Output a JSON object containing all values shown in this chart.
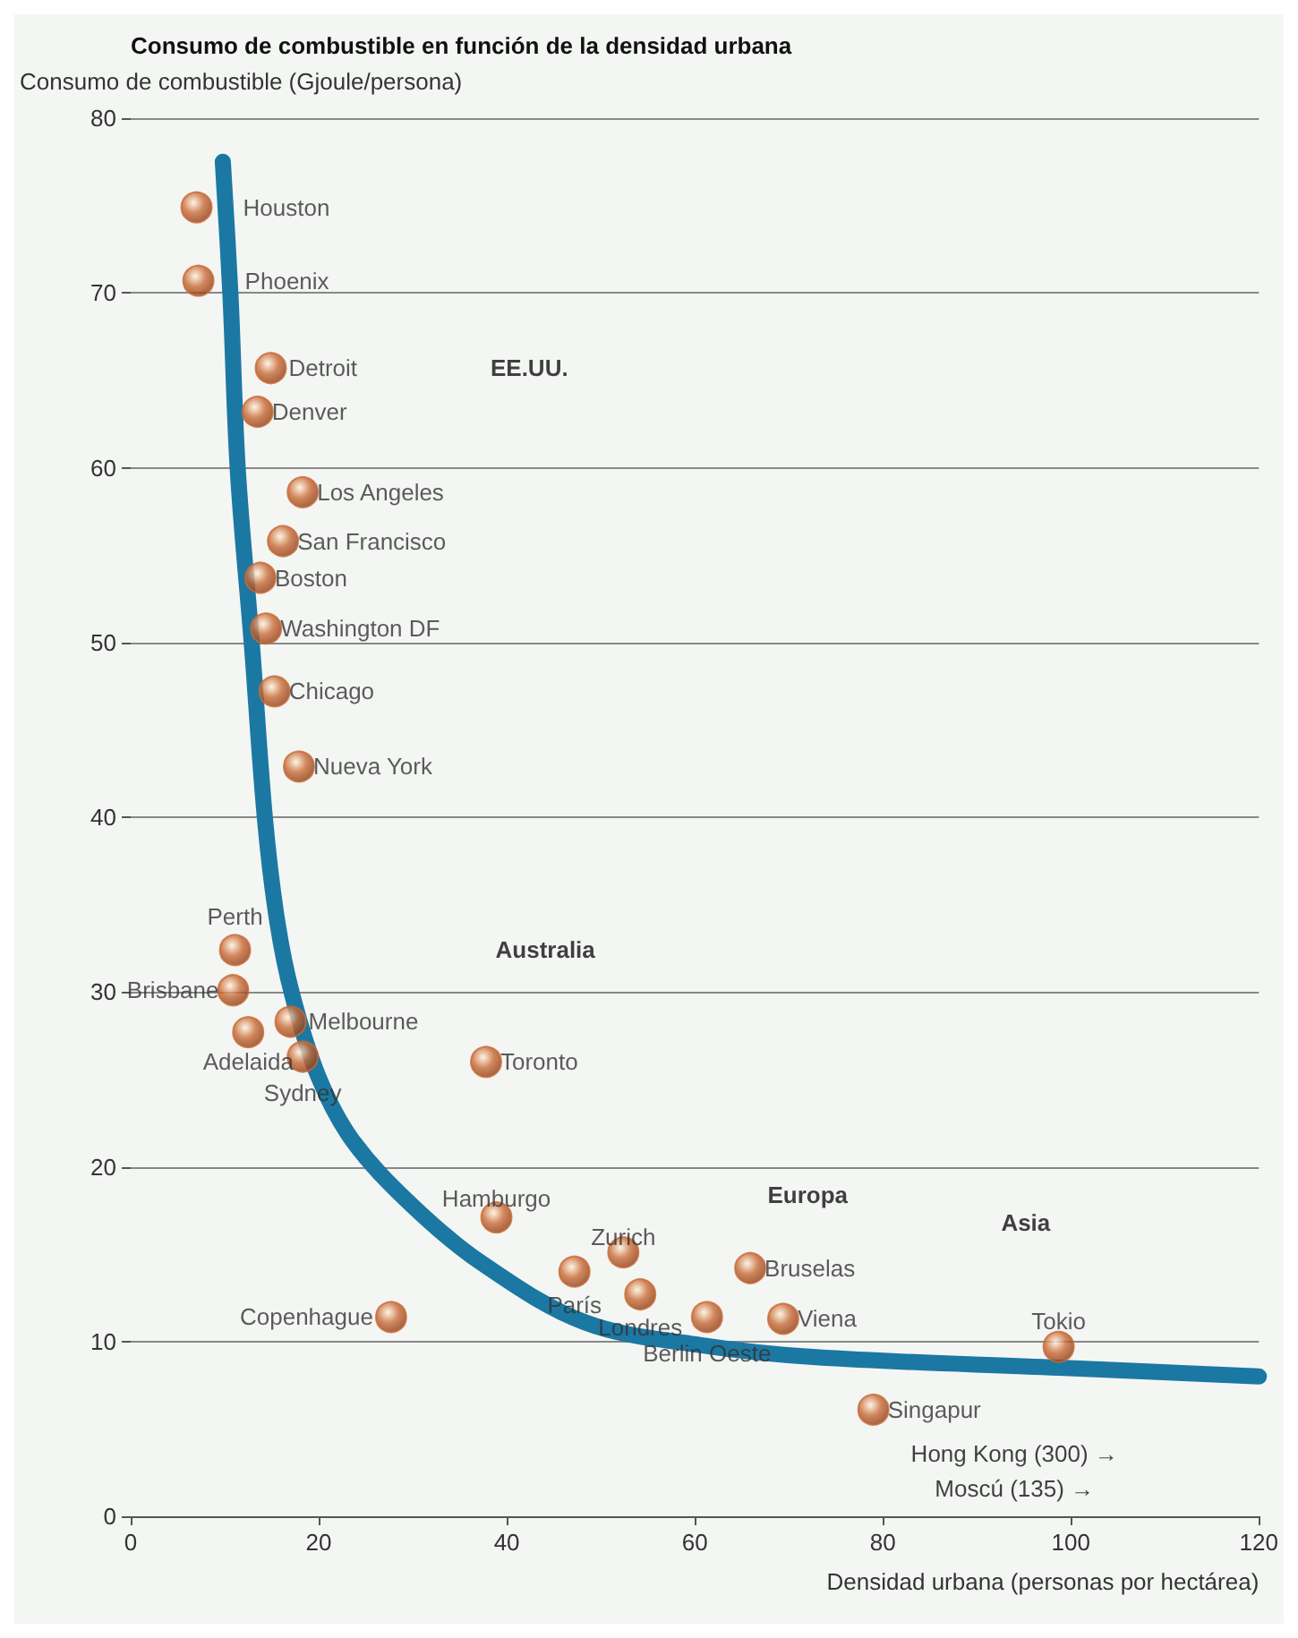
{
  "chart_data": {
    "type": "scatter",
    "title": "Consumo de combustible en función de la densidad urbana",
    "ylabel": "Consumo de combustible (Gjoule/persona)",
    "xlabel": "Densidad urbana (personas por hectárea)",
    "xlim": [
      0,
      120
    ],
    "xticks": [
      0,
      20,
      40,
      60,
      80,
      100,
      120
    ],
    "ylim": [
      0,
      80
    ],
    "yticks": [
      0,
      10,
      20,
      30,
      40,
      50,
      60,
      70,
      80
    ],
    "grid": "y",
    "marker": "circle",
    "series": [
      {
        "type": "line",
        "color": "#1b78a3",
        "marker": "none",
        "x": [
          9.8,
          10.6,
          11.4,
          12.9,
          14.3,
          15.6,
          17.2,
          20,
          23.6,
          29.9,
          37.3,
          48.3,
          60.5,
          72.9,
          98.7,
          120
        ],
        "values": [
          77.5,
          70,
          59.8,
          49.8,
          39.8,
          34,
          29.8,
          25.1,
          21.5,
          17.8,
          14.5,
          11.1,
          9.8,
          9.1,
          8.5,
          8.0
        ]
      },
      {
        "color": "#c96a35",
        "x": [
          7.0,
          7.2,
          14.9,
          13.5,
          18.3,
          16.2,
          13.8,
          14.4,
          15.3,
          17.9,
          11.1,
          10.9,
          12.5,
          17.0,
          18.3,
          37.8,
          38.9,
          27.7,
          47.2,
          52.4,
          54.2,
          65.9,
          61.3,
          69.4,
          79.0,
          98.7
        ],
        "values": [
          74.9,
          70.7,
          65.7,
          63.2,
          58.6,
          55.8,
          53.7,
          50.8,
          47.2,
          42.9,
          32.4,
          30.1,
          27.7,
          28.3,
          26.3,
          26.0,
          17.1,
          11.4,
          14.0,
          15.1,
          12.7,
          14.2,
          11.4,
          11.3,
          6.1,
          9.7
        ]
      }
    ],
    "annotations": [
      {
        "text": "Houston",
        "x": 7.0,
        "y": 74.9
      },
      {
        "text": "Phoenix",
        "x": 7.2,
        "y": 70.7
      },
      {
        "text": "Detroit",
        "x": 14.9,
        "y": 65.7
      },
      {
        "text": "Denver",
        "x": 13.5,
        "y": 63.2
      },
      {
        "text": "Los Angeles",
        "x": 18.3,
        "y": 58.6
      },
      {
        "text": "San Francisco",
        "x": 16.2,
        "y": 55.8
      },
      {
        "text": "Boston",
        "x": 13.8,
        "y": 53.7
      },
      {
        "text": "Washington DF",
        "x": 14.4,
        "y": 50.8
      },
      {
        "text": "Chicago",
        "x": 15.3,
        "y": 47.2
      },
      {
        "text": "Nueva York",
        "x": 17.9,
        "y": 42.9
      },
      {
        "text": "Perth",
        "x": 11.1,
        "y": 32.4
      },
      {
        "text": "Brisbane",
        "x": 10.9,
        "y": 30.1
      },
      {
        "text": "Adelaida",
        "x": 12.5,
        "y": 27.7
      },
      {
        "text": "Melbourne",
        "x": 17.0,
        "y": 28.3
      },
      {
        "text": "Sydney",
        "x": 18.3,
        "y": 26.3
      },
      {
        "text": "Toronto",
        "x": 37.8,
        "y": 26.0
      },
      {
        "text": "Hamburgo",
        "x": 38.9,
        "y": 17.1
      },
      {
        "text": "Copenhague",
        "x": 27.7,
        "y": 11.4
      },
      {
        "text": "París",
        "x": 47.2,
        "y": 14.0
      },
      {
        "text": "Zurich",
        "x": 52.4,
        "y": 15.1
      },
      {
        "text": "Londres",
        "x": 54.2,
        "y": 12.7
      },
      {
        "text": "Bruselas",
        "x": 65.9,
        "y": 14.2
      },
      {
        "text": "Berlin Oeste",
        "x": 61.3,
        "y": 11.4
      },
      {
        "text": "Viena",
        "x": 69.4,
        "y": 11.3
      },
      {
        "text": "Singapur",
        "x": 79.0,
        "y": 6.1
      },
      {
        "text": "Tokio",
        "x": 98.7,
        "y": 9.7
      },
      "EE.UU.",
      "Australia",
      "Europa",
      "Asia",
      "Hong Kong (300) →",
      "Moscú (135) →"
    ]
  }
}
